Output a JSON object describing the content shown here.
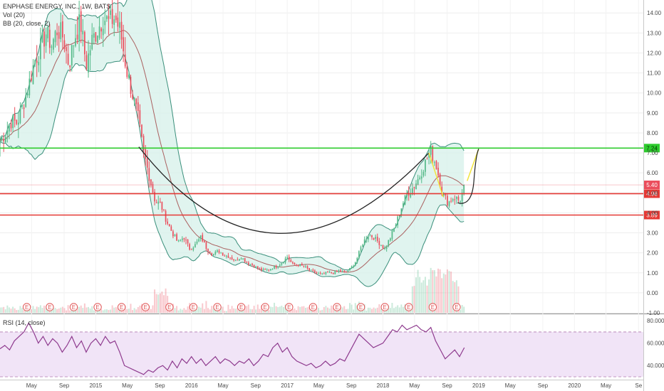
{
  "header": {
    "title": "ENPHASE ENERGY, INC., 1W, BATS",
    "indicator_vol": "Vol (20)",
    "indicator_bb": "BB (20, close, 2)",
    "indicator_rsi": "RSI (14, close)"
  },
  "colors": {
    "up": "#53b987",
    "down": "#eb4d5c",
    "bb_line": "#3a8f7b",
    "bb_fill": "#d5f0ea",
    "basis": "#9c3c3c",
    "support": "#e53935",
    "resistance": "#2ecc2e",
    "rsi_line": "#8e3a8e",
    "rsi_fill": "#f1e4f7",
    "projection": "#f1e43c",
    "cup": "#222222"
  },
  "chart_data": [
    {
      "type": "candlestick",
      "title": "ENPHASE ENERGY, INC., 1W, BATS",
      "ylim": [
        -1.0,
        14.4
      ],
      "price_tick_labels": [
        "14.00",
        "13.00",
        "12.00",
        "11.00",
        "10.00",
        "9.00",
        "8.00",
        "7.00",
        "6.00",
        "5.00",
        "4.00",
        "3.00",
        "2.00",
        "1.00",
        "0.00",
        "-1.00"
      ],
      "price_tick_values": [
        14,
        13,
        12,
        11,
        10,
        9,
        8,
        7,
        6,
        5,
        4,
        3,
        2,
        1,
        0,
        -1
      ],
      "x_tick_labels": [
        "May",
        "Sep",
        "2015",
        "May",
        "Sep",
        "2016",
        "May",
        "Sep",
        "2017",
        "May",
        "Sep",
        "2018",
        "May",
        "Sep",
        "2019",
        "May",
        "Sep",
        "2020",
        "May",
        "Se"
      ],
      "x_tick_values": [
        2014.33,
        2014.67,
        2015.0,
        2015.33,
        2015.67,
        2016.0,
        2016.33,
        2016.67,
        2017.0,
        2017.33,
        2017.67,
        2018.0,
        2018.33,
        2018.67,
        2019.0,
        2019.33,
        2019.67,
        2020.0,
        2020.33,
        2020.67
      ],
      "horizontal_lines": [
        {
          "value": 7.24,
          "label": "7.24",
          "kind": "resistance"
        },
        {
          "value": 4.96,
          "label": "4.96",
          "kind": "support"
        },
        {
          "value": 3.89,
          "label": "3.89",
          "kind": "support"
        }
      ],
      "last_price": {
        "value": 5.4,
        "label": "5.40"
      },
      "close_path": [
        [
          2014.0,
          7.6
        ],
        [
          2014.06,
          8.0
        ],
        [
          2014.12,
          8.6
        ],
        [
          2014.18,
          8.5
        ],
        [
          2014.24,
          9.4
        ],
        [
          2014.3,
          10.4
        ],
        [
          2014.36,
          11.6
        ],
        [
          2014.42,
          12.2
        ],
        [
          2014.48,
          13.0
        ],
        [
          2014.54,
          12.4
        ],
        [
          2014.6,
          13.2
        ],
        [
          2014.66,
          12.8
        ],
        [
          2014.72,
          11.4
        ],
        [
          2014.78,
          12.8
        ],
        [
          2014.84,
          13.6
        ],
        [
          2014.9,
          11.4
        ],
        [
          2014.96,
          12.6
        ],
        [
          2015.02,
          13.2
        ],
        [
          2015.08,
          13.8
        ],
        [
          2015.14,
          13.5
        ],
        [
          2015.2,
          13.8
        ],
        [
          2015.26,
          13.0
        ],
        [
          2015.32,
          11.2
        ],
        [
          2015.38,
          10.0
        ],
        [
          2015.44,
          8.8
        ],
        [
          2015.5,
          7.0
        ],
        [
          2015.56,
          5.8
        ],
        [
          2015.62,
          4.6
        ],
        [
          2015.68,
          4.4
        ],
        [
          2015.74,
          3.6
        ],
        [
          2015.8,
          3.0
        ],
        [
          2015.86,
          2.5
        ],
        [
          2015.92,
          2.8
        ],
        [
          2015.98,
          2.2
        ],
        [
          2016.04,
          2.4
        ],
        [
          2016.1,
          2.8
        ],
        [
          2016.16,
          2.2
        ],
        [
          2016.22,
          1.9
        ],
        [
          2016.28,
          2.1
        ],
        [
          2016.34,
          1.9
        ],
        [
          2016.4,
          1.8
        ],
        [
          2016.46,
          1.6
        ],
        [
          2016.52,
          1.8
        ],
        [
          2016.58,
          1.5
        ],
        [
          2016.64,
          1.4
        ],
        [
          2016.7,
          1.2
        ],
        [
          2016.76,
          1.1
        ],
        [
          2016.82,
          1.2
        ],
        [
          2016.88,
          1.3
        ],
        [
          2016.94,
          1.5
        ],
        [
          2017.0,
          1.8
        ],
        [
          2017.06,
          1.4
        ],
        [
          2017.12,
          1.4
        ],
        [
          2017.18,
          1.3
        ],
        [
          2017.24,
          1.1
        ],
        [
          2017.3,
          1.0
        ],
        [
          2017.36,
          0.9
        ],
        [
          2017.42,
          1.0
        ],
        [
          2017.48,
          1.0
        ],
        [
          2017.54,
          1.1
        ],
        [
          2017.6,
          1.0
        ],
        [
          2017.66,
          1.2
        ],
        [
          2017.72,
          1.6
        ],
        [
          2017.78,
          2.4
        ],
        [
          2017.84,
          2.9
        ],
        [
          2017.9,
          2.8
        ],
        [
          2017.96,
          2.5
        ],
        [
          2018.02,
          2.2
        ],
        [
          2018.08,
          2.8
        ],
        [
          2018.14,
          3.5
        ],
        [
          2018.2,
          4.4
        ],
        [
          2018.26,
          5.0
        ],
        [
          2018.32,
          5.3
        ],
        [
          2018.38,
          5.8
        ],
        [
          2018.44,
          6.5
        ],
        [
          2018.5,
          7.1
        ],
        [
          2018.56,
          6.3
        ],
        [
          2018.62,
          5.0
        ],
        [
          2018.68,
          4.5
        ],
        [
          2018.74,
          4.8
        ],
        [
          2018.8,
          4.6
        ],
        [
          2018.86,
          5.4
        ]
      ]
    },
    {
      "type": "line",
      "title": "RSI (14, close)",
      "ylim": [
        30,
        82
      ],
      "tick_labels": [
        "80.0000",
        "60.0000",
        "40.0000"
      ],
      "tick_values": [
        80,
        60,
        40
      ],
      "band": [
        30,
        70
      ],
      "values": [
        [
          2014.0,
          55
        ],
        [
          2014.05,
          58
        ],
        [
          2014.1,
          54
        ],
        [
          2014.15,
          62
        ],
        [
          2014.2,
          66
        ],
        [
          2014.25,
          70
        ],
        [
          2014.3,
          78
        ],
        [
          2014.35,
          70
        ],
        [
          2014.4,
          60
        ],
        [
          2014.45,
          66
        ],
        [
          2014.5,
          58
        ],
        [
          2014.55,
          64
        ],
        [
          2014.6,
          60
        ],
        [
          2014.65,
          52
        ],
        [
          2014.7,
          58
        ],
        [
          2014.75,
          66
        ],
        [
          2014.8,
          56
        ],
        [
          2014.85,
          62
        ],
        [
          2014.9,
          52
        ],
        [
          2014.95,
          60
        ],
        [
          2015.0,
          64
        ],
        [
          2015.05,
          58
        ],
        [
          2015.1,
          66
        ],
        [
          2015.15,
          60
        ],
        [
          2015.2,
          62
        ],
        [
          2015.25,
          52
        ],
        [
          2015.3,
          40
        ],
        [
          2015.35,
          38
        ],
        [
          2015.4,
          36
        ],
        [
          2015.45,
          34
        ],
        [
          2015.5,
          32
        ],
        [
          2015.55,
          36
        ],
        [
          2015.6,
          34
        ],
        [
          2015.65,
          38
        ],
        [
          2015.7,
          40
        ],
        [
          2015.75,
          36
        ],
        [
          2015.8,
          44
        ],
        [
          2015.85,
          38
        ],
        [
          2015.9,
          46
        ],
        [
          2015.95,
          42
        ],
        [
          2016.0,
          48
        ],
        [
          2016.05,
          42
        ],
        [
          2016.1,
          46
        ],
        [
          2016.15,
          40
        ],
        [
          2016.2,
          44
        ],
        [
          2016.25,
          48
        ],
        [
          2016.3,
          42
        ],
        [
          2016.35,
          46
        ],
        [
          2016.4,
          44
        ],
        [
          2016.45,
          40
        ],
        [
          2016.5,
          44
        ],
        [
          2016.55,
          42
        ],
        [
          2016.6,
          46
        ],
        [
          2016.65,
          40
        ],
        [
          2016.7,
          44
        ],
        [
          2016.75,
          50
        ],
        [
          2016.8,
          48
        ],
        [
          2016.85,
          56
        ],
        [
          2016.9,
          60
        ],
        [
          2016.95,
          52
        ],
        [
          2017.0,
          56
        ],
        [
          2017.05,
          48
        ],
        [
          2017.1,
          44
        ],
        [
          2017.15,
          42
        ],
        [
          2017.2,
          40
        ],
        [
          2017.25,
          42
        ],
        [
          2017.3,
          38
        ],
        [
          2017.35,
          40
        ],
        [
          2017.4,
          44
        ],
        [
          2017.45,
          40
        ],
        [
          2017.5,
          42
        ],
        [
          2017.55,
          46
        ],
        [
          2017.6,
          44
        ],
        [
          2017.65,
          52
        ],
        [
          2017.7,
          60
        ],
        [
          2017.75,
          68
        ],
        [
          2017.8,
          64
        ],
        [
          2017.85,
          60
        ],
        [
          2017.9,
          56
        ],
        [
          2017.95,
          58
        ],
        [
          2018.0,
          60
        ],
        [
          2018.05,
          66
        ],
        [
          2018.1,
          72
        ],
        [
          2018.15,
          70
        ],
        [
          2018.2,
          76
        ],
        [
          2018.25,
          72
        ],
        [
          2018.3,
          74
        ],
        [
          2018.35,
          76
        ],
        [
          2018.4,
          72
        ],
        [
          2018.45,
          70
        ],
        [
          2018.5,
          74
        ],
        [
          2018.55,
          62
        ],
        [
          2018.6,
          54
        ],
        [
          2018.65,
          46
        ],
        [
          2018.7,
          50
        ],
        [
          2018.75,
          54
        ],
        [
          2018.8,
          48
        ],
        [
          2018.85,
          56
        ]
      ]
    }
  ]
}
